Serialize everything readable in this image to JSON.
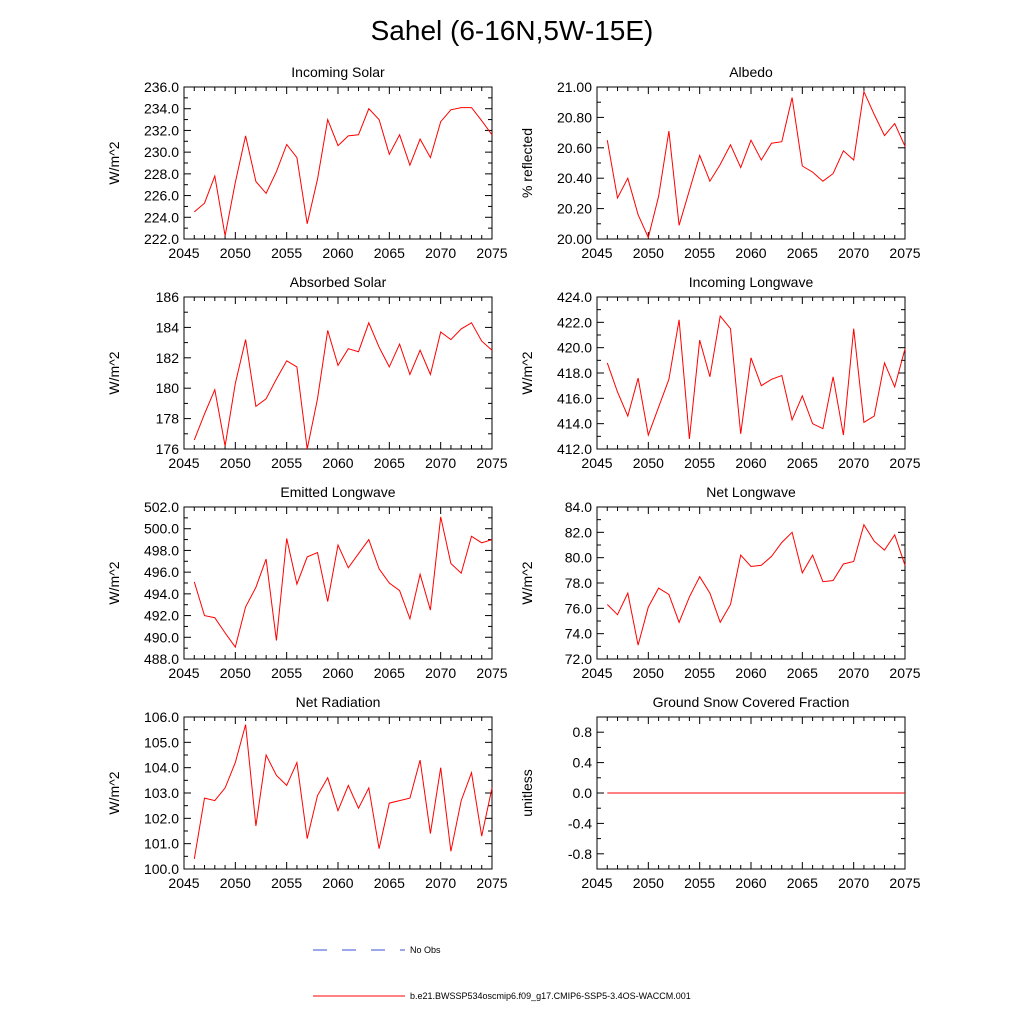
{
  "figure": {
    "title": "Sahel (6-16N,5W-15E)"
  },
  "legend": {
    "entries": [
      {
        "label": "No Obs",
        "color": "#3a4fd8",
        "style": "dashed"
      },
      {
        "label": "b.e21.BWSSP534oscmip6.f09_g17.CMIP6-SSP5-3.4OS-WACCM.001",
        "color": "#ff0000",
        "style": "solid"
      }
    ]
  },
  "chart_data": [
    {
      "type": "line",
      "title": "Incoming Solar",
      "ylabel": "W/m^2",
      "xlim": [
        2045,
        2075
      ],
      "ylim": [
        222,
        236
      ],
      "xticks": [
        2045,
        2050,
        2055,
        2060,
        2065,
        2070,
        2075
      ],
      "yticks": [
        "222.0",
        "224.0",
        "226.0",
        "228.0",
        "230.0",
        "232.0",
        "234.0",
        "236.0"
      ],
      "x": [
        2046,
        2047,
        2048,
        2049,
        2050,
        2051,
        2052,
        2053,
        2054,
        2055,
        2056,
        2057,
        2058,
        2059,
        2060,
        2061,
        2062,
        2063,
        2064,
        2065,
        2066,
        2067,
        2068,
        2069,
        2070,
        2071,
        2072,
        2073,
        2074,
        2075
      ],
      "series": [
        {
          "name": "b.e21.BWSSP534oscmip6.f09_g17.CMIP6-SSP5-3.4OS-WACCM.001",
          "color": "#ff0000",
          "values": [
            224.5,
            225.3,
            227.8,
            222.3,
            227.2,
            231.5,
            227.3,
            226.2,
            228.2,
            230.7,
            229.5,
            223.4,
            227.5,
            233.0,
            230.6,
            231.5,
            231.6,
            234.0,
            233.0,
            229.8,
            231.6,
            228.8,
            231.2,
            229.5,
            232.8,
            233.9,
            234.1,
            234.1,
            232.9,
            231.6
          ]
        }
      ]
    },
    {
      "type": "line",
      "title": "Albedo",
      "ylabel": "% reflected",
      "xlim": [
        2045,
        2075
      ],
      "ylim": [
        20.0,
        21.0
      ],
      "xticks": [
        2045,
        2050,
        2055,
        2060,
        2065,
        2070,
        2075
      ],
      "yticks": [
        "20.00",
        "20.20",
        "20.40",
        "20.60",
        "20.80",
        "21.00"
      ],
      "x": [
        2046,
        2047,
        2048,
        2049,
        2050,
        2051,
        2052,
        2053,
        2054,
        2055,
        2056,
        2057,
        2058,
        2059,
        2060,
        2061,
        2062,
        2063,
        2064,
        2065,
        2066,
        2067,
        2068,
        2069,
        2070,
        2071,
        2072,
        2073,
        2074,
        2075
      ],
      "series": [
        {
          "name": "b.e21.BWSSP534oscmip6.f09_g17.CMIP6-SSP5-3.4OS-WACCM.001",
          "color": "#ff0000",
          "values": [
            20.65,
            20.27,
            20.4,
            20.16,
            20.01,
            20.28,
            20.71,
            20.09,
            20.32,
            20.55,
            20.38,
            20.49,
            20.62,
            20.47,
            20.65,
            20.52,
            20.63,
            20.64,
            20.93,
            20.48,
            20.44,
            20.38,
            20.43,
            20.58,
            20.52,
            20.97,
            20.82,
            20.68,
            20.76,
            20.61
          ]
        }
      ]
    },
    {
      "type": "line",
      "title": "Absorbed Solar",
      "ylabel": "W/m^2",
      "xlim": [
        2045,
        2075
      ],
      "ylim": [
        176,
        186
      ],
      "xticks": [
        2045,
        2050,
        2055,
        2060,
        2065,
        2070,
        2075
      ],
      "yticks": [
        "176",
        "178",
        "180",
        "182",
        "184",
        "186"
      ],
      "x": [
        2046,
        2047,
        2048,
        2049,
        2050,
        2051,
        2052,
        2053,
        2054,
        2055,
        2056,
        2057,
        2058,
        2059,
        2060,
        2061,
        2062,
        2063,
        2064,
        2065,
        2066,
        2067,
        2068,
        2069,
        2070,
        2071,
        2072,
        2073,
        2074,
        2075
      ],
      "series": [
        {
          "name": "b.e21.BWSSP534oscmip6.f09_g17.CMIP6-SSP5-3.4OS-WACCM.001",
          "color": "#ff0000",
          "values": [
            176.6,
            178.3,
            179.9,
            176.2,
            180.3,
            183.2,
            178.8,
            179.3,
            180.6,
            181.8,
            181.4,
            176.0,
            179.3,
            183.8,
            181.5,
            182.6,
            182.4,
            184.3,
            182.7,
            181.4,
            182.9,
            180.9,
            182.5,
            180.9,
            183.7,
            183.2,
            183.9,
            184.3,
            183.1,
            182.5
          ]
        }
      ]
    },
    {
      "type": "line",
      "title": "Incoming Longwave",
      "ylabel": "W/m^2",
      "xlim": [
        2045,
        2075
      ],
      "ylim": [
        412,
        424
      ],
      "xticks": [
        2045,
        2050,
        2055,
        2060,
        2065,
        2070,
        2075
      ],
      "yticks": [
        "412.0",
        "414.0",
        "416.0",
        "418.0",
        "420.0",
        "422.0",
        "424.0"
      ],
      "x": [
        2046,
        2047,
        2048,
        2049,
        2050,
        2051,
        2052,
        2053,
        2054,
        2055,
        2056,
        2057,
        2058,
        2059,
        2060,
        2061,
        2062,
        2063,
        2064,
        2065,
        2066,
        2067,
        2068,
        2069,
        2070,
        2071,
        2072,
        2073,
        2074,
        2075
      ],
      "series": [
        {
          "name": "b.e21.BWSSP534oscmip6.f09_g17.CMIP6-SSP5-3.4OS-WACCM.001",
          "color": "#ff0000",
          "values": [
            418.8,
            416.5,
            414.6,
            417.6,
            413.1,
            415.3,
            417.5,
            422.2,
            412.8,
            420.6,
            417.7,
            422.5,
            421.5,
            413.2,
            419.2,
            417.0,
            417.5,
            417.8,
            414.3,
            416.2,
            414.0,
            413.6,
            417.7,
            413.1,
            421.5,
            414.1,
            414.6,
            418.8,
            416.9,
            419.9
          ]
        }
      ]
    },
    {
      "type": "line",
      "title": "Emitted Longwave",
      "ylabel": "W/m^2",
      "xlim": [
        2045,
        2075
      ],
      "ylim": [
        488,
        502
      ],
      "xticks": [
        2045,
        2050,
        2055,
        2060,
        2065,
        2070,
        2075
      ],
      "yticks": [
        "488.0",
        "490.0",
        "492.0",
        "494.0",
        "496.0",
        "498.0",
        "500.0",
        "502.0"
      ],
      "x": [
        2046,
        2047,
        2048,
        2049,
        2050,
        2051,
        2052,
        2053,
        2054,
        2055,
        2056,
        2057,
        2058,
        2059,
        2060,
        2061,
        2062,
        2063,
        2064,
        2065,
        2066,
        2067,
        2068,
        2069,
        2070,
        2071,
        2072,
        2073,
        2074,
        2075
      ],
      "series": [
        {
          "name": "b.e21.BWSSP534oscmip6.f09_g17.CMIP6-SSP5-3.4OS-WACCM.001",
          "color": "#ff0000",
          "values": [
            495.1,
            492.0,
            491.8,
            490.4,
            489.1,
            492.8,
            494.6,
            497.2,
            489.7,
            499.1,
            494.9,
            497.4,
            497.8,
            493.3,
            498.5,
            496.4,
            497.7,
            499.0,
            496.3,
            495.0,
            494.3,
            491.7,
            495.8,
            492.5,
            501.1,
            496.8,
            495.9,
            499.3,
            498.7,
            499.0
          ]
        }
      ]
    },
    {
      "type": "line",
      "title": "Net Longwave",
      "ylabel": "W/m^2",
      "xlim": [
        2045,
        2075
      ],
      "ylim": [
        72,
        84
      ],
      "xticks": [
        2045,
        2050,
        2055,
        2060,
        2065,
        2070,
        2075
      ],
      "yticks": [
        "72.0",
        "74.0",
        "76.0",
        "78.0",
        "80.0",
        "82.0",
        "84.0"
      ],
      "x": [
        2046,
        2047,
        2048,
        2049,
        2050,
        2051,
        2052,
        2053,
        2054,
        2055,
        2056,
        2057,
        2058,
        2059,
        2060,
        2061,
        2062,
        2063,
        2064,
        2065,
        2066,
        2067,
        2068,
        2069,
        2070,
        2071,
        2072,
        2073,
        2074,
        2075
      ],
      "series": [
        {
          "name": "b.e21.BWSSP534oscmip6.f09_g17.CMIP6-SSP5-3.4OS-WACCM.001",
          "color": "#ff0000",
          "values": [
            76.3,
            75.5,
            77.2,
            73.1,
            76.1,
            77.6,
            77.1,
            74.9,
            76.9,
            78.5,
            77.2,
            74.9,
            76.3,
            80.2,
            79.3,
            79.4,
            80.1,
            81.2,
            82.0,
            78.8,
            80.2,
            78.1,
            78.2,
            79.5,
            79.7,
            82.6,
            81.3,
            80.6,
            81.8,
            79.4
          ]
        }
      ]
    },
    {
      "type": "line",
      "title": "Net Radiation",
      "ylabel": "W/m^2",
      "xlim": [
        2045,
        2075
      ],
      "ylim": [
        100,
        106
      ],
      "xticks": [
        2045,
        2050,
        2055,
        2060,
        2065,
        2070,
        2075
      ],
      "yticks": [
        "100.0",
        "101.0",
        "102.0",
        "103.0",
        "104.0",
        "105.0",
        "106.0"
      ],
      "x": [
        2046,
        2047,
        2048,
        2049,
        2050,
        2051,
        2052,
        2053,
        2054,
        2055,
        2056,
        2057,
        2058,
        2059,
        2060,
        2061,
        2062,
        2063,
        2064,
        2065,
        2066,
        2067,
        2068,
        2069,
        2070,
        2071,
        2072,
        2073,
        2074,
        2075
      ],
      "series": [
        {
          "name": "b.e21.BWSSP534oscmip6.f09_g17.CMIP6-SSP5-3.4OS-WACCM.001",
          "color": "#ff0000",
          "values": [
            100.4,
            102.8,
            102.7,
            103.2,
            104.2,
            105.7,
            101.7,
            104.5,
            103.7,
            103.3,
            104.2,
            101.2,
            102.9,
            103.6,
            102.3,
            103.3,
            102.4,
            103.2,
            100.8,
            102.6,
            102.7,
            102.8,
            104.3,
            101.4,
            104.0,
            100.7,
            102.7,
            103.8,
            101.3,
            103.2
          ]
        }
      ]
    },
    {
      "type": "line",
      "title": "Ground Snow Covered Fraction",
      "ylabel": "unitless",
      "xlim": [
        2045,
        2075
      ],
      "ylim": [
        -1.0,
        1.0
      ],
      "xticks": [
        2045,
        2050,
        2055,
        2060,
        2065,
        2070,
        2075
      ],
      "yticks": [
        "-0.8",
        "-0.4",
        "0.0",
        "0.4",
        "0.8"
      ],
      "ytick_values": [
        -0.8,
        -0.4,
        0.0,
        0.4,
        0.8
      ],
      "x": [
        2046,
        2047,
        2048,
        2049,
        2050,
        2051,
        2052,
        2053,
        2054,
        2055,
        2056,
        2057,
        2058,
        2059,
        2060,
        2061,
        2062,
        2063,
        2064,
        2065,
        2066,
        2067,
        2068,
        2069,
        2070,
        2071,
        2072,
        2073,
        2074,
        2075
      ],
      "series": [
        {
          "name": "b.e21.BWSSP534oscmip6.f09_g17.CMIP6-SSP5-3.4OS-WACCM.001",
          "color": "#ff0000",
          "values": [
            0,
            0,
            0,
            0,
            0,
            0,
            0,
            0,
            0,
            0,
            0,
            0,
            0,
            0,
            0,
            0,
            0,
            0,
            0,
            0,
            0,
            0,
            0,
            0,
            0,
            0,
            0,
            0,
            0,
            0
          ]
        }
      ]
    }
  ]
}
